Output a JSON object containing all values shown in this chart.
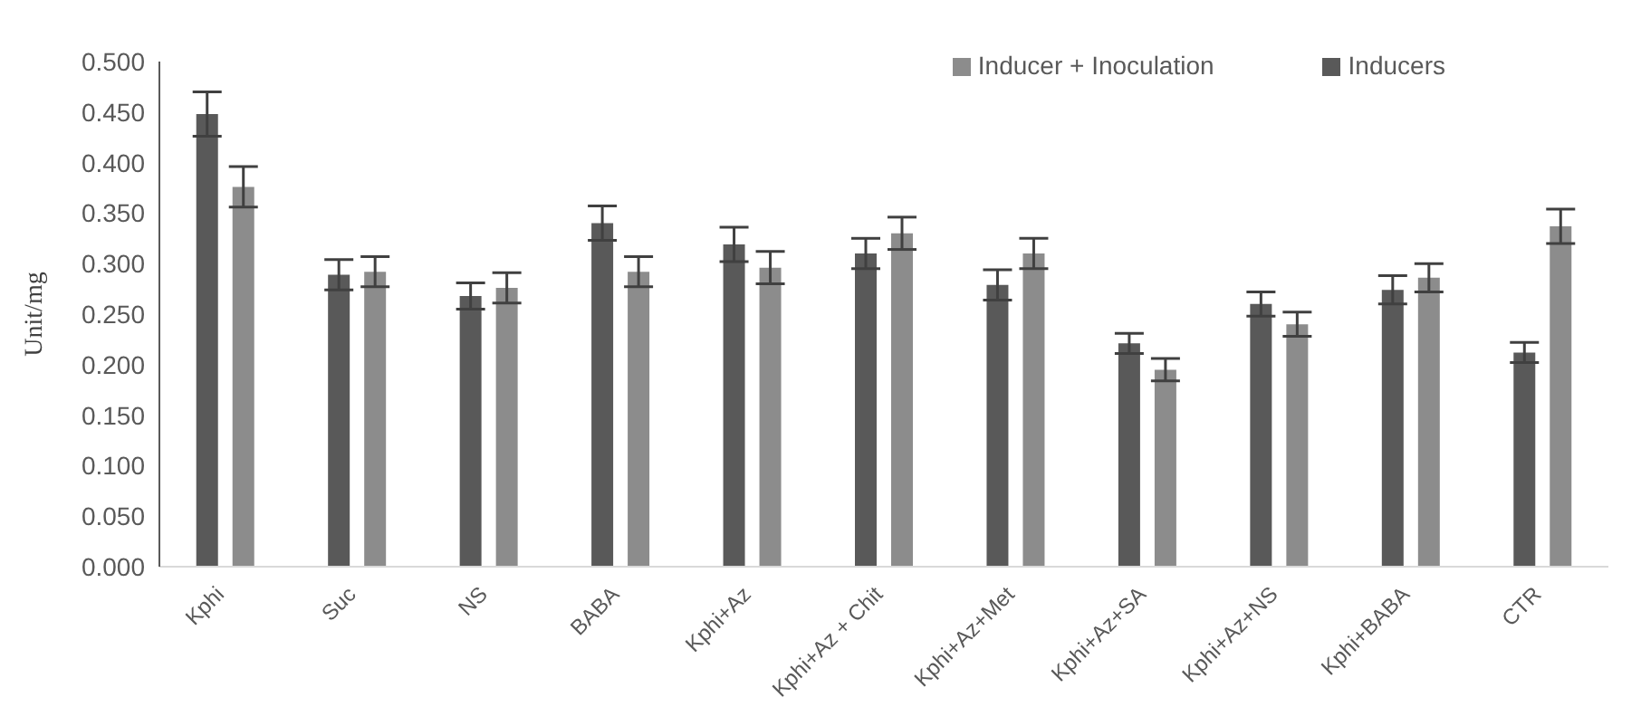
{
  "chart_data": {
    "type": "bar",
    "ylabel": "Unit/mg",
    "categories": [
      "Kphi",
      "Suc",
      "NS",
      "BABA",
      "Kphi+Az",
      "Kphi+Az + Chit",
      "Kphi+Az+Met",
      "Kphi+Az+SA",
      "Kphi+Az+NS",
      "Kphi+BABA",
      "CTR"
    ],
    "series": [
      {
        "name": "Inducers",
        "color": "#595959",
        "values": [
          0.448,
          0.289,
          0.268,
          0.34,
          0.319,
          0.31,
          0.279,
          0.221,
          0.26,
          0.274,
          0.212
        ],
        "errors": [
          0.022,
          0.015,
          0.013,
          0.017,
          0.017,
          0.015,
          0.015,
          0.01,
          0.012,
          0.014,
          0.01
        ]
      },
      {
        "name": "Inducer + Inoculation",
        "color": "#8c8c8c",
        "values": [
          0.376,
          0.292,
          0.276,
          0.292,
          0.296,
          0.33,
          0.31,
          0.195,
          0.24,
          0.286,
          0.337
        ],
        "errors": [
          0.02,
          0.015,
          0.015,
          0.015,
          0.016,
          0.016,
          0.015,
          0.011,
          0.012,
          0.014,
          0.017
        ]
      }
    ],
    "ylim": [
      0,
      0.5
    ],
    "yticks": [
      {
        "value": 0,
        "label": "0.000"
      },
      {
        "value": 0.05,
        "label": "0.050"
      },
      {
        "value": 0.1,
        "label": "0.100"
      },
      {
        "value": 0.15,
        "label": "0.150"
      },
      {
        "value": 0.2,
        "label": "0.200"
      },
      {
        "value": 0.25,
        "label": "0.250"
      },
      {
        "value": 0.3,
        "label": "0.300"
      },
      {
        "value": 0.35,
        "label": "0.350"
      },
      {
        "value": 0.4,
        "label": "0.400"
      },
      {
        "value": 0.45,
        "label": "0.450"
      },
      {
        "value": 0.5,
        "label": "0.500"
      }
    ],
    "grid": false,
    "legend": "top right"
  }
}
